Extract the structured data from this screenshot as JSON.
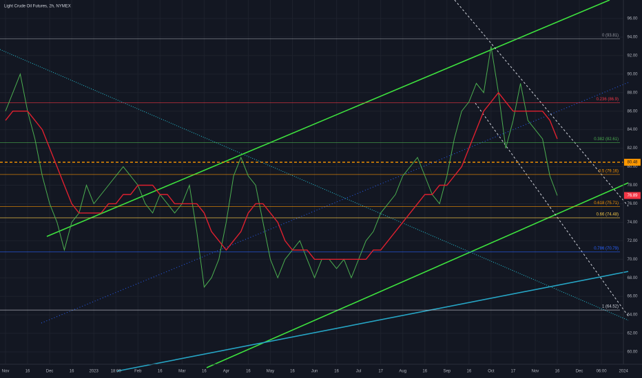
{
  "chart_data": {
    "type": "line",
    "title": "Light Crude Oil Futures, 2h, NYMEX",
    "categories": [
      "Nov",
      null,
      null,
      "16",
      null,
      null,
      "Dec",
      null,
      null,
      "16",
      null,
      null,
      "2023",
      null,
      null,
      "18:00",
      null,
      null,
      "Feb",
      null,
      null,
      "16",
      null,
      null,
      "Mar",
      null,
      null,
      "16",
      null,
      null,
      "Apr",
      null,
      null,
      "16",
      null,
      null,
      "May",
      null,
      null,
      "16",
      null,
      null,
      "Jun",
      null,
      null,
      "16",
      null,
      null,
      "Jul",
      null,
      null,
      "17",
      null,
      null,
      "Aug",
      null,
      null,
      "16",
      null,
      null,
      "Sep",
      null,
      null,
      "16",
      null,
      null,
      "Oct",
      null,
      null,
      "17",
      null,
      null,
      "Nov",
      null,
      null,
      "16",
      null,
      null,
      "Dec",
      null,
      null,
      "06:00",
      null,
      null,
      "2024"
    ],
    "series": [
      {
        "color": "#4caf50",
        "values": [
          86,
          88,
          90,
          86,
          83,
          79,
          76,
          74,
          71,
          74,
          75,
          78,
          76,
          77,
          78,
          79,
          80,
          79,
          78,
          76,
          75,
          77,
          76,
          75,
          76,
          78,
          73,
          67,
          68,
          70,
          74,
          79,
          81,
          79,
          78,
          74,
          70,
          68,
          70,
          71,
          72,
          70,
          68,
          70,
          70,
          69,
          70,
          68,
          70,
          72,
          73,
          75,
          76,
          77,
          79,
          80,
          81,
          79,
          77,
          76,
          79,
          83,
          86,
          87,
          89,
          88,
          93,
          88,
          82,
          85,
          89,
          85,
          84,
          83,
          79,
          76.89,
          null,
          null,
          null,
          null,
          null,
          null,
          null,
          null,
          null
        ]
      },
      {
        "color": "#e0202f",
        "values": [
          85,
          86,
          86,
          86,
          85,
          84,
          82,
          80,
          78,
          76,
          75,
          75,
          75,
          75,
          76,
          76,
          77,
          77,
          78,
          78,
          78,
          77,
          77,
          76,
          76,
          76,
          76,
          75,
          73,
          72,
          71,
          72,
          73,
          75,
          76,
          76,
          75,
          74,
          72,
          71,
          71,
          71,
          70,
          70,
          70,
          70,
          70,
          70,
          70,
          70,
          71,
          71,
          72,
          73,
          74,
          75,
          76,
          77,
          77,
          78,
          78,
          79,
          80,
          82,
          84,
          86,
          87,
          88,
          87,
          86,
          86,
          86,
          86,
          86,
          85,
          83,
          null,
          null,
          null,
          null,
          null,
          null,
          null,
          null,
          null
        ]
      }
    ],
    "ylim": [
      60,
      96
    ],
    "yticks": [
      {
        "value": 60,
        "label": "60.00"
      },
      {
        "value": 62,
        "label": "62.00"
      },
      {
        "value": 64,
        "label": "64.00"
      },
      {
        "value": 66,
        "label": "66.00"
      },
      {
        "value": 68,
        "label": "68.00"
      },
      {
        "value": 70,
        "label": "70.00"
      },
      {
        "value": 72,
        "label": "72.00"
      },
      {
        "value": 74,
        "label": "74.00"
      },
      {
        "value": 76,
        "label": "76.00"
      },
      {
        "value": 78,
        "label": "78.00"
      },
      {
        "value": 80,
        "label": "80.00"
      },
      {
        "value": 82,
        "label": "82.00"
      },
      {
        "value": 84,
        "label": "84.00"
      },
      {
        "value": 86,
        "label": "86.00"
      },
      {
        "value": 88,
        "label": "88.00"
      },
      {
        "value": 90,
        "label": "90.00"
      },
      {
        "value": 92,
        "label": "92.00"
      },
      {
        "value": 94,
        "label": "94.00"
      },
      {
        "value": 96,
        "label": "96.00"
      }
    ],
    "grid": true,
    "levels": [
      {
        "label": "0 (93.81)",
        "value": 93.81,
        "color": "#9598a1"
      },
      {
        "label": "0.236 (86.9)",
        "value": 86.9,
        "color": "#f23645"
      },
      {
        "label": "0.382 (82.61)",
        "value": 82.61,
        "color": "#4caf50"
      },
      {
        "label": "0.5 (79.16)",
        "value": 79.16,
        "color": "#ff9800"
      },
      {
        "label": "0.618 (75.71)",
        "value": 75.71,
        "color": "#ff9800"
      },
      {
        "label": "0.66 (74.48)",
        "value": 74.48,
        "color": "#f7c948"
      },
      {
        "label": "0.786 (70.79)",
        "value": 70.79,
        "color": "#2962ff"
      },
      {
        "label": "1 (64.52)",
        "value": 64.52,
        "color": "#d1d4dc"
      }
    ],
    "marked_level": 80.48,
    "last_price": 76.89
  }
}
